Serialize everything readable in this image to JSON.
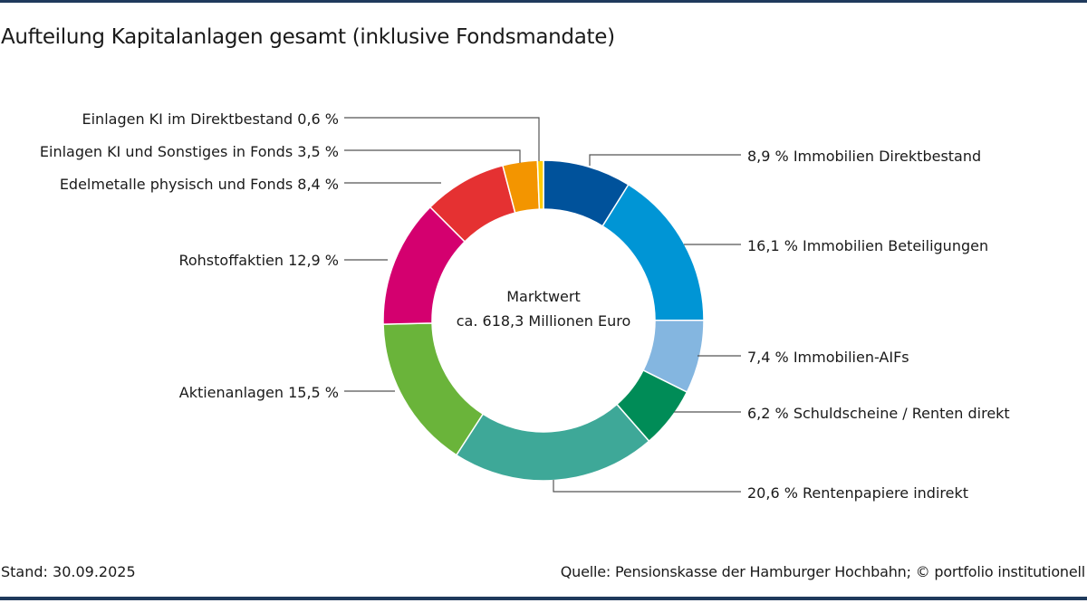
{
  "chart_data": {
    "type": "pie",
    "subtype": "donut",
    "title": "Aufteilung Kapitalanlagen gesamt (inklusive Fondsmandate)",
    "center_label": [
      "Marktwert",
      "ca. 618,3 Millionen Euro"
    ],
    "unit": "%",
    "slices": [
      {
        "name": "Immobilien Direktbestand",
        "value": 8.9,
        "label": "8,9 % Immobilien Direktbestand",
        "color": "#00529b",
        "side": "right"
      },
      {
        "name": "Immobilien Beteiligungen",
        "value": 16.1,
        "label": "16,1 % Immobilien Beteiligungen",
        "color": "#0095d5",
        "side": "right"
      },
      {
        "name": "Immobilien-AIFs",
        "value": 7.4,
        "label": "7,4 % Immobilien-AIFs",
        "color": "#84b6e0",
        "side": "right"
      },
      {
        "name": "Schuldscheine/Renten direkt",
        "value": 6.2,
        "label": "6,2 % Schuldscheine / Renten direkt",
        "color": "#008c57",
        "side": "right"
      },
      {
        "name": "Rentenpapiere indirekt",
        "value": 20.6,
        "label": "20,6 % Rentenpapiere indirekt",
        "color": "#3ea898",
        "side": "right"
      },
      {
        "name": "Aktienanlagen",
        "value": 15.5,
        "label": "Aktienanlagen 15,5 %",
        "color": "#6ab43a",
        "side": "left"
      },
      {
        "name": "Rohstoffaktien",
        "value": 12.9,
        "label": "Rohstoffaktien 12,9 %",
        "color": "#d4006f",
        "side": "left"
      },
      {
        "name": "Edelmetalle physisch und Fonds",
        "value": 8.4,
        "label": "Edelmetalle physisch und Fonds 8,4 %",
        "color": "#e53132",
        "side": "left"
      },
      {
        "name": "Einlagen KI und Sonstiges in Fonds",
        "value": 3.5,
        "label": "Einlagen KI und Sonstiges in Fonds 3,5 %",
        "color": "#f39500",
        "side": "left"
      },
      {
        "name": "Einlagen KI im Direktbestand",
        "value": 0.6,
        "label": "Einlagen KI im Direktbestand 0,6 %",
        "color": "#fecc00",
        "side": "left"
      }
    ]
  },
  "footer": {
    "date": "Stand: 30.09.2025",
    "source": "Quelle: Pensionskasse der Hamburger Hochbahn; © portfolio institutionell"
  },
  "colors": {
    "rule": "#1f3a5c",
    "leader": "#555555"
  }
}
